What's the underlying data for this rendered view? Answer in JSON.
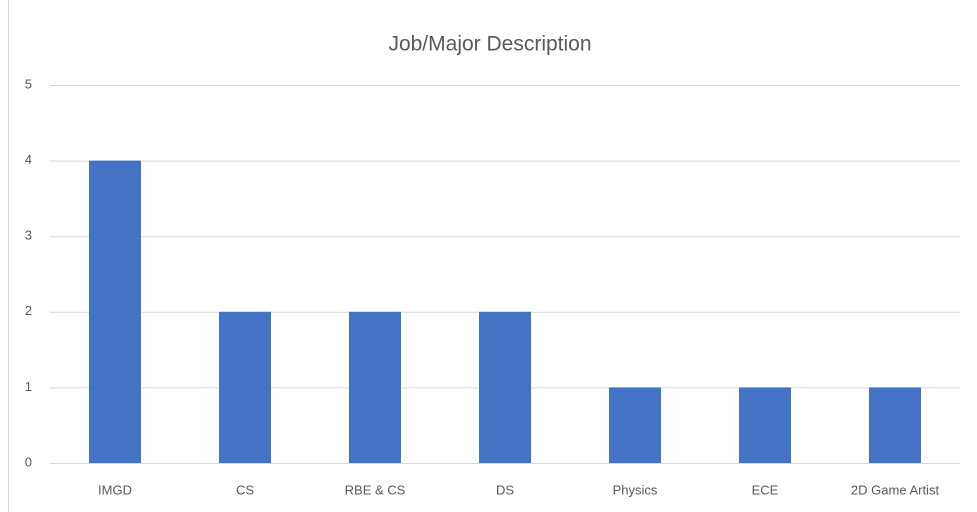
{
  "chart_data": {
    "type": "bar",
    "title": "Job/Major Description",
    "categories": [
      "IMGD",
      "CS",
      "RBE & CS",
      "DS",
      "Physics",
      "ECE",
      "2D Game Artist"
    ],
    "values": [
      4,
      2,
      2,
      2,
      1,
      1,
      1
    ],
    "color": "#4472c4",
    "ylim": [
      0,
      5
    ],
    "yticks": [
      0,
      1,
      2,
      3,
      4,
      5
    ],
    "grid": true
  }
}
